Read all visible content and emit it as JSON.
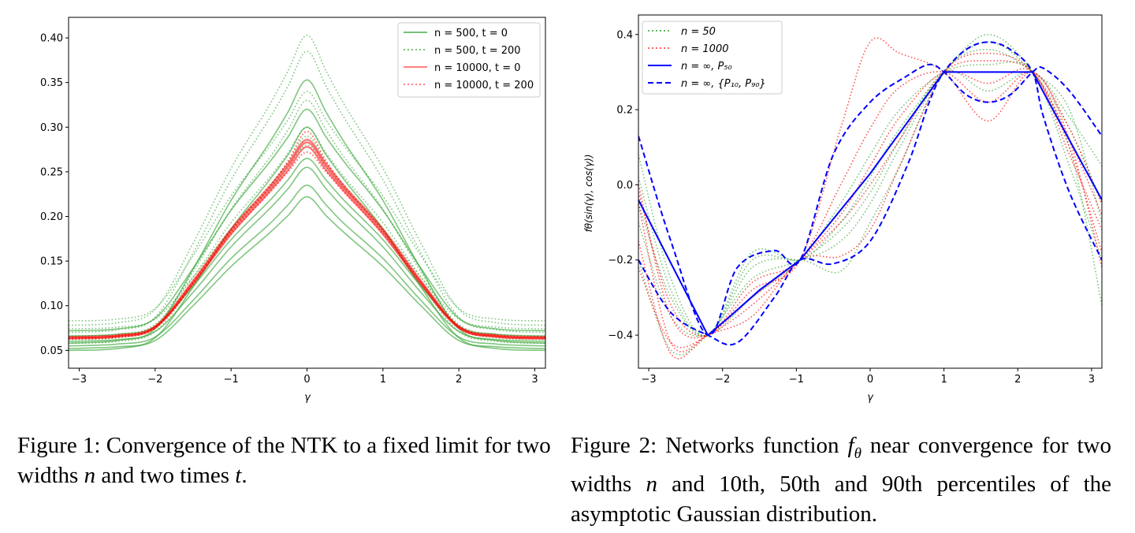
{
  "figure1": {
    "caption": {
      "prefix": "Figure 1: Convergence of the NTK to a fixed limit for two widths ",
      "var1": "n",
      "mid": " and two times ",
      "var2": "t",
      "suffix": "."
    },
    "xlabel": "γ",
    "legend": [
      "n = 500, t = 0",
      "n = 500, t = 200",
      "n = 10000, t = 0",
      "n = 10000, t = 200"
    ]
  },
  "figure2": {
    "caption": {
      "prefix": "Figure 2: Networks function ",
      "var1": "f",
      "var1_sub": "θ",
      "mid": " near convergence for two widths ",
      "var2": "n",
      "suffix": " and 10th, 50th and 90th percentiles of the asymptotic Gaussian distribution."
    },
    "xlabel": "γ",
    "ylabel": "fθ(sin(γ), cos(γ))",
    "legend": [
      "n = 50",
      "n = 1000",
      "n = ∞, P₅₀",
      "n = ∞, {P₁₀, P₉₀}"
    ]
  },
  "chart_data": [
    {
      "type": "line",
      "xlabel": "γ",
      "ylabel": "",
      "xlim": [
        -3.14,
        3.14
      ],
      "ylim": [
        0.03,
        0.423
      ],
      "xticks": [
        "−3",
        "−2",
        "−1",
        "0",
        "1",
        "2",
        "3"
      ],
      "xtick_values": [
        -3,
        -2,
        -1,
        0,
        1,
        2,
        3
      ],
      "yticks": [
        "0.05",
        "0.10",
        "0.15",
        "0.20",
        "0.25",
        "0.30",
        "0.35",
        "0.40"
      ],
      "ytick_values": [
        0.05,
        0.1,
        0.15,
        0.2,
        0.25,
        0.3,
        0.35,
        0.4
      ],
      "grid": false,
      "legend_position": "top-right",
      "x": [
        -3.14,
        -2.5,
        -2,
        -1.5,
        -1,
        -0.5,
        -0.25,
        0,
        0.25,
        0.5,
        1,
        1.5,
        2,
        2.5,
        3.14
      ],
      "series": [
        {
          "name": "n = 500, t = 0",
          "color": "#2ca02c",
          "style": "solid",
          "curves": [
            [
              0.058,
              0.061,
              0.074,
              0.141,
              0.218,
              0.282,
              0.317,
              0.353,
              0.317,
              0.282,
              0.218,
              0.141,
              0.074,
              0.061,
              0.058
            ],
            [
              0.072,
              0.074,
              0.086,
              0.142,
              0.207,
              0.26,
              0.289,
              0.32,
              0.289,
              0.26,
              0.207,
              0.142,
              0.086,
              0.074,
              0.072
            ],
            [
              0.05,
              0.052,
              0.064,
              0.121,
              0.186,
              0.24,
              0.269,
              0.3,
              0.269,
              0.24,
              0.186,
              0.121,
              0.064,
              0.052,
              0.05
            ],
            [
              0.066,
              0.068,
              0.077,
              0.122,
              0.174,
              0.217,
              0.241,
              0.265,
              0.241,
              0.217,
              0.174,
              0.122,
              0.077,
              0.068,
              0.066
            ],
            [
              0.06,
              0.062,
              0.071,
              0.115,
              0.166,
              0.208,
              0.231,
              0.255,
              0.231,
              0.208,
              0.166,
              0.115,
              0.071,
              0.062,
              0.06
            ],
            [
              0.055,
              0.057,
              0.065,
              0.106,
              0.153,
              0.191,
              0.213,
              0.235,
              0.213,
              0.191,
              0.153,
              0.106,
              0.065,
              0.057,
              0.055
            ],
            [
              0.052,
              0.054,
              0.061,
              0.1,
              0.144,
              0.181,
              0.201,
              0.222,
              0.201,
              0.181,
              0.144,
              0.1,
              0.061,
              0.054,
              0.052
            ]
          ]
        },
        {
          "name": "n = 500, t = 200",
          "color": "#2ca02c",
          "style": "dotted",
          "curves": [
            [
              0.078,
              0.081,
              0.096,
              0.17,
              0.254,
              0.324,
              0.363,
              0.403,
              0.363,
              0.324,
              0.254,
              0.17,
              0.096,
              0.081,
              0.078
            ],
            [
              0.07,
              0.073,
              0.087,
              0.159,
              0.241,
              0.309,
              0.346,
              0.385,
              0.346,
              0.309,
              0.241,
              0.159,
              0.087,
              0.073,
              0.07
            ],
            [
              0.083,
              0.085,
              0.097,
              0.156,
              0.223,
              0.278,
              0.308,
              0.34,
              0.308,
              0.278,
              0.223,
              0.156,
              0.097,
              0.085,
              0.083
            ],
            [
              0.062,
              0.064,
              0.077,
              0.138,
              0.208,
              0.265,
              0.297,
              0.33,
              0.297,
              0.265,
              0.208,
              0.138,
              0.077,
              0.064,
              0.062
            ],
            [
              0.066,
              0.068,
              0.079,
              0.132,
              0.193,
              0.243,
              0.271,
              0.3,
              0.271,
              0.243,
              0.193,
              0.132,
              0.079,
              0.068,
              0.066
            ],
            [
              0.058,
              0.06,
              0.071,
              0.124,
              0.184,
              0.234,
              0.261,
              0.29,
              0.261,
              0.234,
              0.184,
              0.124,
              0.071,
              0.06,
              0.058
            ],
            [
              0.074,
              0.076,
              0.085,
              0.132,
              0.186,
              0.23,
              0.255,
              0.28,
              0.255,
              0.23,
              0.186,
              0.132,
              0.085,
              0.076,
              0.074
            ]
          ]
        },
        {
          "name": "n = 10000, t = 0",
          "color": "#ff0000",
          "style": "solid",
          "curves": [
            [
              0.064,
              0.066,
              0.076,
              0.126,
              0.183,
              0.23,
              0.256,
              0.283,
              0.256,
              0.23,
              0.183,
              0.126,
              0.076,
              0.066,
              0.064
            ],
            [
              0.063,
              0.065,
              0.075,
              0.124,
              0.18,
              0.227,
              0.252,
              0.278,
              0.252,
              0.227,
              0.18,
              0.124,
              0.075,
              0.065,
              0.063
            ],
            [
              0.065,
              0.067,
              0.077,
              0.128,
              0.186,
              0.233,
              0.259,
              0.286,
              0.259,
              0.233,
              0.186,
              0.128,
              0.077,
              0.067,
              0.065
            ]
          ]
        },
        {
          "name": "n = 10000, t = 200",
          "color": "#ff0000",
          "style": "dotted",
          "curves": [
            [
              0.064,
              0.066,
              0.076,
              0.127,
              0.184,
              0.232,
              0.262,
              0.295,
              0.262,
              0.232,
              0.184,
              0.127,
              0.076,
              0.066,
              0.064
            ],
            [
              0.063,
              0.065,
              0.075,
              0.125,
              0.181,
              0.226,
              0.25,
              0.272,
              0.25,
              0.226,
              0.181,
              0.125,
              0.075,
              0.065,
              0.063
            ]
          ]
        }
      ]
    },
    {
      "type": "line",
      "xlabel": "γ",
      "ylabel": "fθ(sin(γ), cos(γ))",
      "xlim": [
        -3.14,
        3.14
      ],
      "ylim": [
        -0.488,
        0.452
      ],
      "xticks": [
        "−3",
        "−2",
        "−1",
        "0",
        "1",
        "2",
        "3"
      ],
      "xtick_values": [
        -3,
        -2,
        -1,
        0,
        1,
        2,
        3
      ],
      "yticks": [
        "−0.4",
        "−0.2",
        "0.0",
        "0.2",
        "0.4"
      ],
      "ytick_values": [
        -0.4,
        -0.2,
        0.0,
        0.2,
        0.4
      ],
      "grid": false,
      "legend_position": "top-left",
      "series": [
        {
          "name": "n = 50",
          "color": "#2ca02c",
          "style": "dotted",
          "x": [
            -3.14,
            -2.7,
            -2.2,
            -1.6,
            -0.95,
            -0.4,
            0,
            0.4,
            1.0,
            1.6,
            2.2,
            2.7,
            3.14
          ],
          "curves": [
            [
              0.08,
              -0.25,
              -0.4,
              -0.18,
              -0.2,
              -0.1,
              0.02,
              0.15,
              0.3,
              0.4,
              0.3,
              0.1,
              -0.32
            ],
            [
              -0.05,
              -0.3,
              -0.4,
              -0.22,
              -0.2,
              -0.23,
              -0.1,
              0.05,
              0.3,
              0.36,
              0.3,
              0.2,
              -0.1
            ],
            [
              -0.2,
              -0.44,
              -0.4,
              -0.25,
              -0.2,
              -0.12,
              -0.02,
              0.12,
              0.3,
              0.25,
              0.3,
              0.18,
              0.05
            ],
            [
              -0.1,
              -0.35,
              -0.4,
              -0.3,
              -0.2,
              -0.05,
              0.08,
              0.2,
              0.3,
              0.32,
              0.3,
              0.05,
              -0.2
            ],
            [
              0.02,
              -0.28,
              -0.4,
              -0.2,
              -0.2,
              -0.15,
              -0.05,
              0.1,
              0.3,
              0.38,
              0.3,
              0.15,
              -0.05
            ]
          ]
        },
        {
          "name": "n = 1000",
          "color": "#ff0000",
          "style": "dotted",
          "x": [
            -3.14,
            -2.7,
            -2.2,
            -1.6,
            -0.95,
            -0.4,
            0,
            0.4,
            1.0,
            1.6,
            2.2,
            2.7,
            3.14
          ],
          "curves": [
            [
              0.0,
              -0.35,
              -0.4,
              -0.28,
              -0.2,
              0.15,
              0.38,
              0.35,
              0.3,
              0.17,
              0.3,
              0.12,
              -0.22
            ],
            [
              -0.05,
              -0.42,
              -0.4,
              -0.32,
              -0.2,
              -0.08,
              0.05,
              0.18,
              0.3,
              0.27,
              0.3,
              0.08,
              -0.12
            ],
            [
              -0.15,
              -0.45,
              -0.4,
              -0.35,
              -0.2,
              -0.19,
              -0.12,
              0.05,
              0.3,
              0.35,
              0.3,
              0.1,
              -0.18
            ],
            [
              -0.02,
              -0.32,
              -0.4,
              -0.26,
              -0.2,
              0.0,
              0.15,
              0.26,
              0.3,
              0.22,
              0.3,
              0.15,
              -0.05
            ],
            [
              -0.22,
              -0.42,
              -0.4,
              -0.3,
              -0.2,
              -0.1,
              0.0,
              0.12,
              0.3,
              0.33,
              0.3,
              0.12,
              -0.08
            ]
          ]
        },
        {
          "name": "n = ∞, P₅₀",
          "color": "#0000ff",
          "style": "solid",
          "x": [
            -3.14,
            -2.2,
            -1.9,
            -1.5,
            -0.95,
            0,
            1.0,
            1.6,
            2.2,
            3.14
          ],
          "curves": [
            [
              -0.04,
              -0.4,
              -0.35,
              -0.28,
              -0.2,
              0.03,
              0.3,
              0.3,
              0.3,
              -0.04
            ]
          ]
        },
        {
          "name": "n = ∞, {P₁₀, P₉₀}",
          "color": "#0000ff",
          "style": "dashed",
          "x": [
            -3.14,
            -2.7,
            -2.2,
            -1.8,
            -1.3,
            -0.95,
            -0.5,
            0,
            0.5,
            0.8,
            1.0,
            1.3,
            1.6,
            1.9,
            2.2,
            2.35,
            2.7,
            3.14
          ],
          "curves": [
            [
              0.13,
              -0.15,
              -0.4,
              -0.22,
              -0.175,
              -0.2,
              0.08,
              0.22,
              0.29,
              0.32,
              0.3,
              0.24,
              0.22,
              0.24,
              0.3,
              0.31,
              0.25,
              0.13
            ],
            [
              -0.2,
              -0.34,
              -0.4,
              -0.42,
              -0.3,
              -0.2,
              -0.21,
              -0.15,
              0.05,
              0.22,
              0.3,
              0.36,
              0.38,
              0.36,
              0.3,
              0.18,
              -0.02,
              -0.2
            ]
          ]
        }
      ]
    }
  ]
}
